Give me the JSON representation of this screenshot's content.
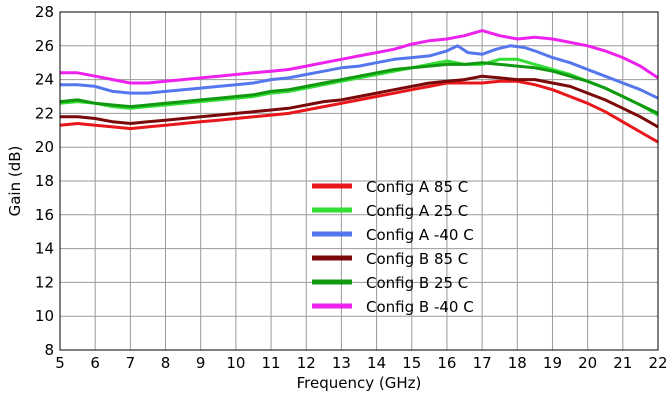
{
  "chart_data": {
    "type": "line",
    "title": "",
    "xlabel": "Frequency (GHz)",
    "ylabel": "Gain (dB)",
    "xlim": [
      5,
      22
    ],
    "ylim": [
      8,
      28
    ],
    "grid": true,
    "legend_position": "bottom-center",
    "x_ticks": [
      5,
      6,
      7,
      8,
      9,
      10,
      11,
      12,
      13,
      14,
      15,
      16,
      17,
      18,
      19,
      20,
      21,
      22
    ],
    "y_ticks": [
      8,
      10,
      12,
      14,
      16,
      18,
      20,
      22,
      24,
      26,
      28
    ],
    "series": [
      {
        "name": "Config A 85 C",
        "color": "#e8171b",
        "x": [
          5,
          5.5,
          6,
          6.5,
          7,
          7.5,
          8,
          8.5,
          9,
          9.5,
          10,
          10.5,
          11,
          11.5,
          12,
          12.5,
          13,
          13.5,
          14,
          14.5,
          15,
          15.5,
          16,
          16.5,
          17,
          17.5,
          18,
          18.5,
          19,
          19.5,
          20,
          20.5,
          21,
          21.5,
          22
        ],
        "values": [
          21.3,
          21.4,
          21.3,
          21.2,
          21.1,
          21.2,
          21.3,
          21.4,
          21.5,
          21.6,
          21.7,
          21.8,
          21.9,
          22.0,
          22.2,
          22.4,
          22.6,
          22.8,
          23.0,
          23.2,
          23.4,
          23.6,
          23.8,
          23.8,
          23.8,
          23.9,
          23.9,
          23.7,
          23.4,
          23.0,
          22.6,
          22.1,
          21.5,
          20.9,
          20.3
        ]
      },
      {
        "name": "Config A 25 C",
        "color": "#33dd33",
        "x": [
          5,
          5.5,
          6,
          6.5,
          7,
          7.5,
          8,
          8.5,
          9,
          9.5,
          10,
          10.5,
          11,
          11.5,
          12,
          12.5,
          13,
          13.5,
          14,
          14.5,
          15,
          15.5,
          16,
          16.5,
          17,
          17.5,
          18,
          18.5,
          19,
          19.5,
          20,
          20.5,
          21,
          21.5,
          22
        ],
        "values": [
          22.6,
          22.7,
          22.6,
          22.4,
          22.3,
          22.4,
          22.5,
          22.6,
          22.7,
          22.8,
          22.9,
          23.0,
          23.2,
          23.3,
          23.5,
          23.7,
          23.9,
          24.1,
          24.3,
          24.5,
          24.7,
          24.9,
          25.1,
          24.9,
          24.9,
          25.2,
          25.2,
          24.9,
          24.6,
          24.3,
          23.9,
          23.5,
          23.0,
          22.5,
          21.9
        ]
      },
      {
        "name": "Config A -40 C",
        "color": "#5577ee",
        "x": [
          5,
          5.5,
          6,
          6.5,
          7,
          7.5,
          8,
          8.5,
          9,
          9.5,
          10,
          10.5,
          11,
          11.5,
          12,
          12.5,
          13,
          13.5,
          14,
          14.5,
          15,
          15.5,
          16,
          16.3,
          16.6,
          17,
          17.4,
          17.8,
          18.2,
          18.5,
          19,
          19.5,
          20,
          20.5,
          21,
          21.5,
          22
        ],
        "values": [
          23.7,
          23.7,
          23.6,
          23.3,
          23.2,
          23.2,
          23.3,
          23.4,
          23.5,
          23.6,
          23.7,
          23.8,
          24.0,
          24.1,
          24.3,
          24.5,
          24.7,
          24.8,
          25.0,
          25.2,
          25.3,
          25.4,
          25.7,
          26.0,
          25.6,
          25.5,
          25.8,
          26.0,
          25.9,
          25.7,
          25.3,
          25.0,
          24.6,
          24.2,
          23.8,
          23.4,
          22.9
        ]
      },
      {
        "name": "Config B 85 C",
        "color": "#7a0a0a",
        "x": [
          5,
          5.5,
          6,
          6.5,
          7,
          7.5,
          8,
          8.5,
          9,
          9.5,
          10,
          10.5,
          11,
          11.5,
          12,
          12.5,
          13,
          13.5,
          14,
          14.5,
          15,
          15.5,
          16,
          16.5,
          17,
          17.5,
          18,
          18.5,
          19,
          19.5,
          20,
          20.5,
          21,
          21.5,
          22
        ],
        "values": [
          21.8,
          21.8,
          21.7,
          21.5,
          21.4,
          21.5,
          21.6,
          21.7,
          21.8,
          21.9,
          22.0,
          22.1,
          22.2,
          22.3,
          22.5,
          22.7,
          22.8,
          23.0,
          23.2,
          23.4,
          23.6,
          23.8,
          23.9,
          24.0,
          24.2,
          24.1,
          24.0,
          24.0,
          23.8,
          23.6,
          23.2,
          22.8,
          22.3,
          21.8,
          21.2
        ]
      },
      {
        "name": "Config B 25 C",
        "color": "#119911",
        "x": [
          5,
          5.5,
          6,
          6.5,
          7,
          7.5,
          8,
          8.5,
          9,
          9.5,
          10,
          10.5,
          11,
          11.5,
          12,
          12.5,
          13,
          13.5,
          14,
          14.5,
          15,
          15.5,
          16,
          16.5,
          17,
          17.5,
          18,
          18.5,
          19,
          19.5,
          20,
          20.5,
          21,
          21.5,
          22
        ],
        "values": [
          22.7,
          22.8,
          22.6,
          22.5,
          22.4,
          22.5,
          22.6,
          22.7,
          22.8,
          22.9,
          23.0,
          23.1,
          23.3,
          23.4,
          23.6,
          23.8,
          24.0,
          24.2,
          24.4,
          24.6,
          24.7,
          24.8,
          24.9,
          24.9,
          25.0,
          24.9,
          24.8,
          24.7,
          24.5,
          24.2,
          23.9,
          23.5,
          23.0,
          22.5,
          22.0
        ]
      },
      {
        "name": "Config B -40 C",
        "color": "#ee22ee",
        "x": [
          5,
          5.5,
          6,
          6.5,
          7,
          7.5,
          8,
          8.5,
          9,
          9.5,
          10,
          10.5,
          11,
          11.5,
          12,
          12.5,
          13,
          13.5,
          14,
          14.5,
          15,
          15.5,
          16,
          16.5,
          17,
          17.5,
          18,
          18.5,
          19,
          19.5,
          20,
          20.5,
          21,
          21.5,
          22
        ],
        "values": [
          24.4,
          24.4,
          24.2,
          24.0,
          23.8,
          23.8,
          23.9,
          24.0,
          24.1,
          24.2,
          24.3,
          24.4,
          24.5,
          24.6,
          24.8,
          25.0,
          25.2,
          25.4,
          25.6,
          25.8,
          26.1,
          26.3,
          26.4,
          26.6,
          26.9,
          26.6,
          26.4,
          26.5,
          26.4,
          26.2,
          26.0,
          25.7,
          25.3,
          24.8,
          24.1
        ]
      }
    ]
  }
}
